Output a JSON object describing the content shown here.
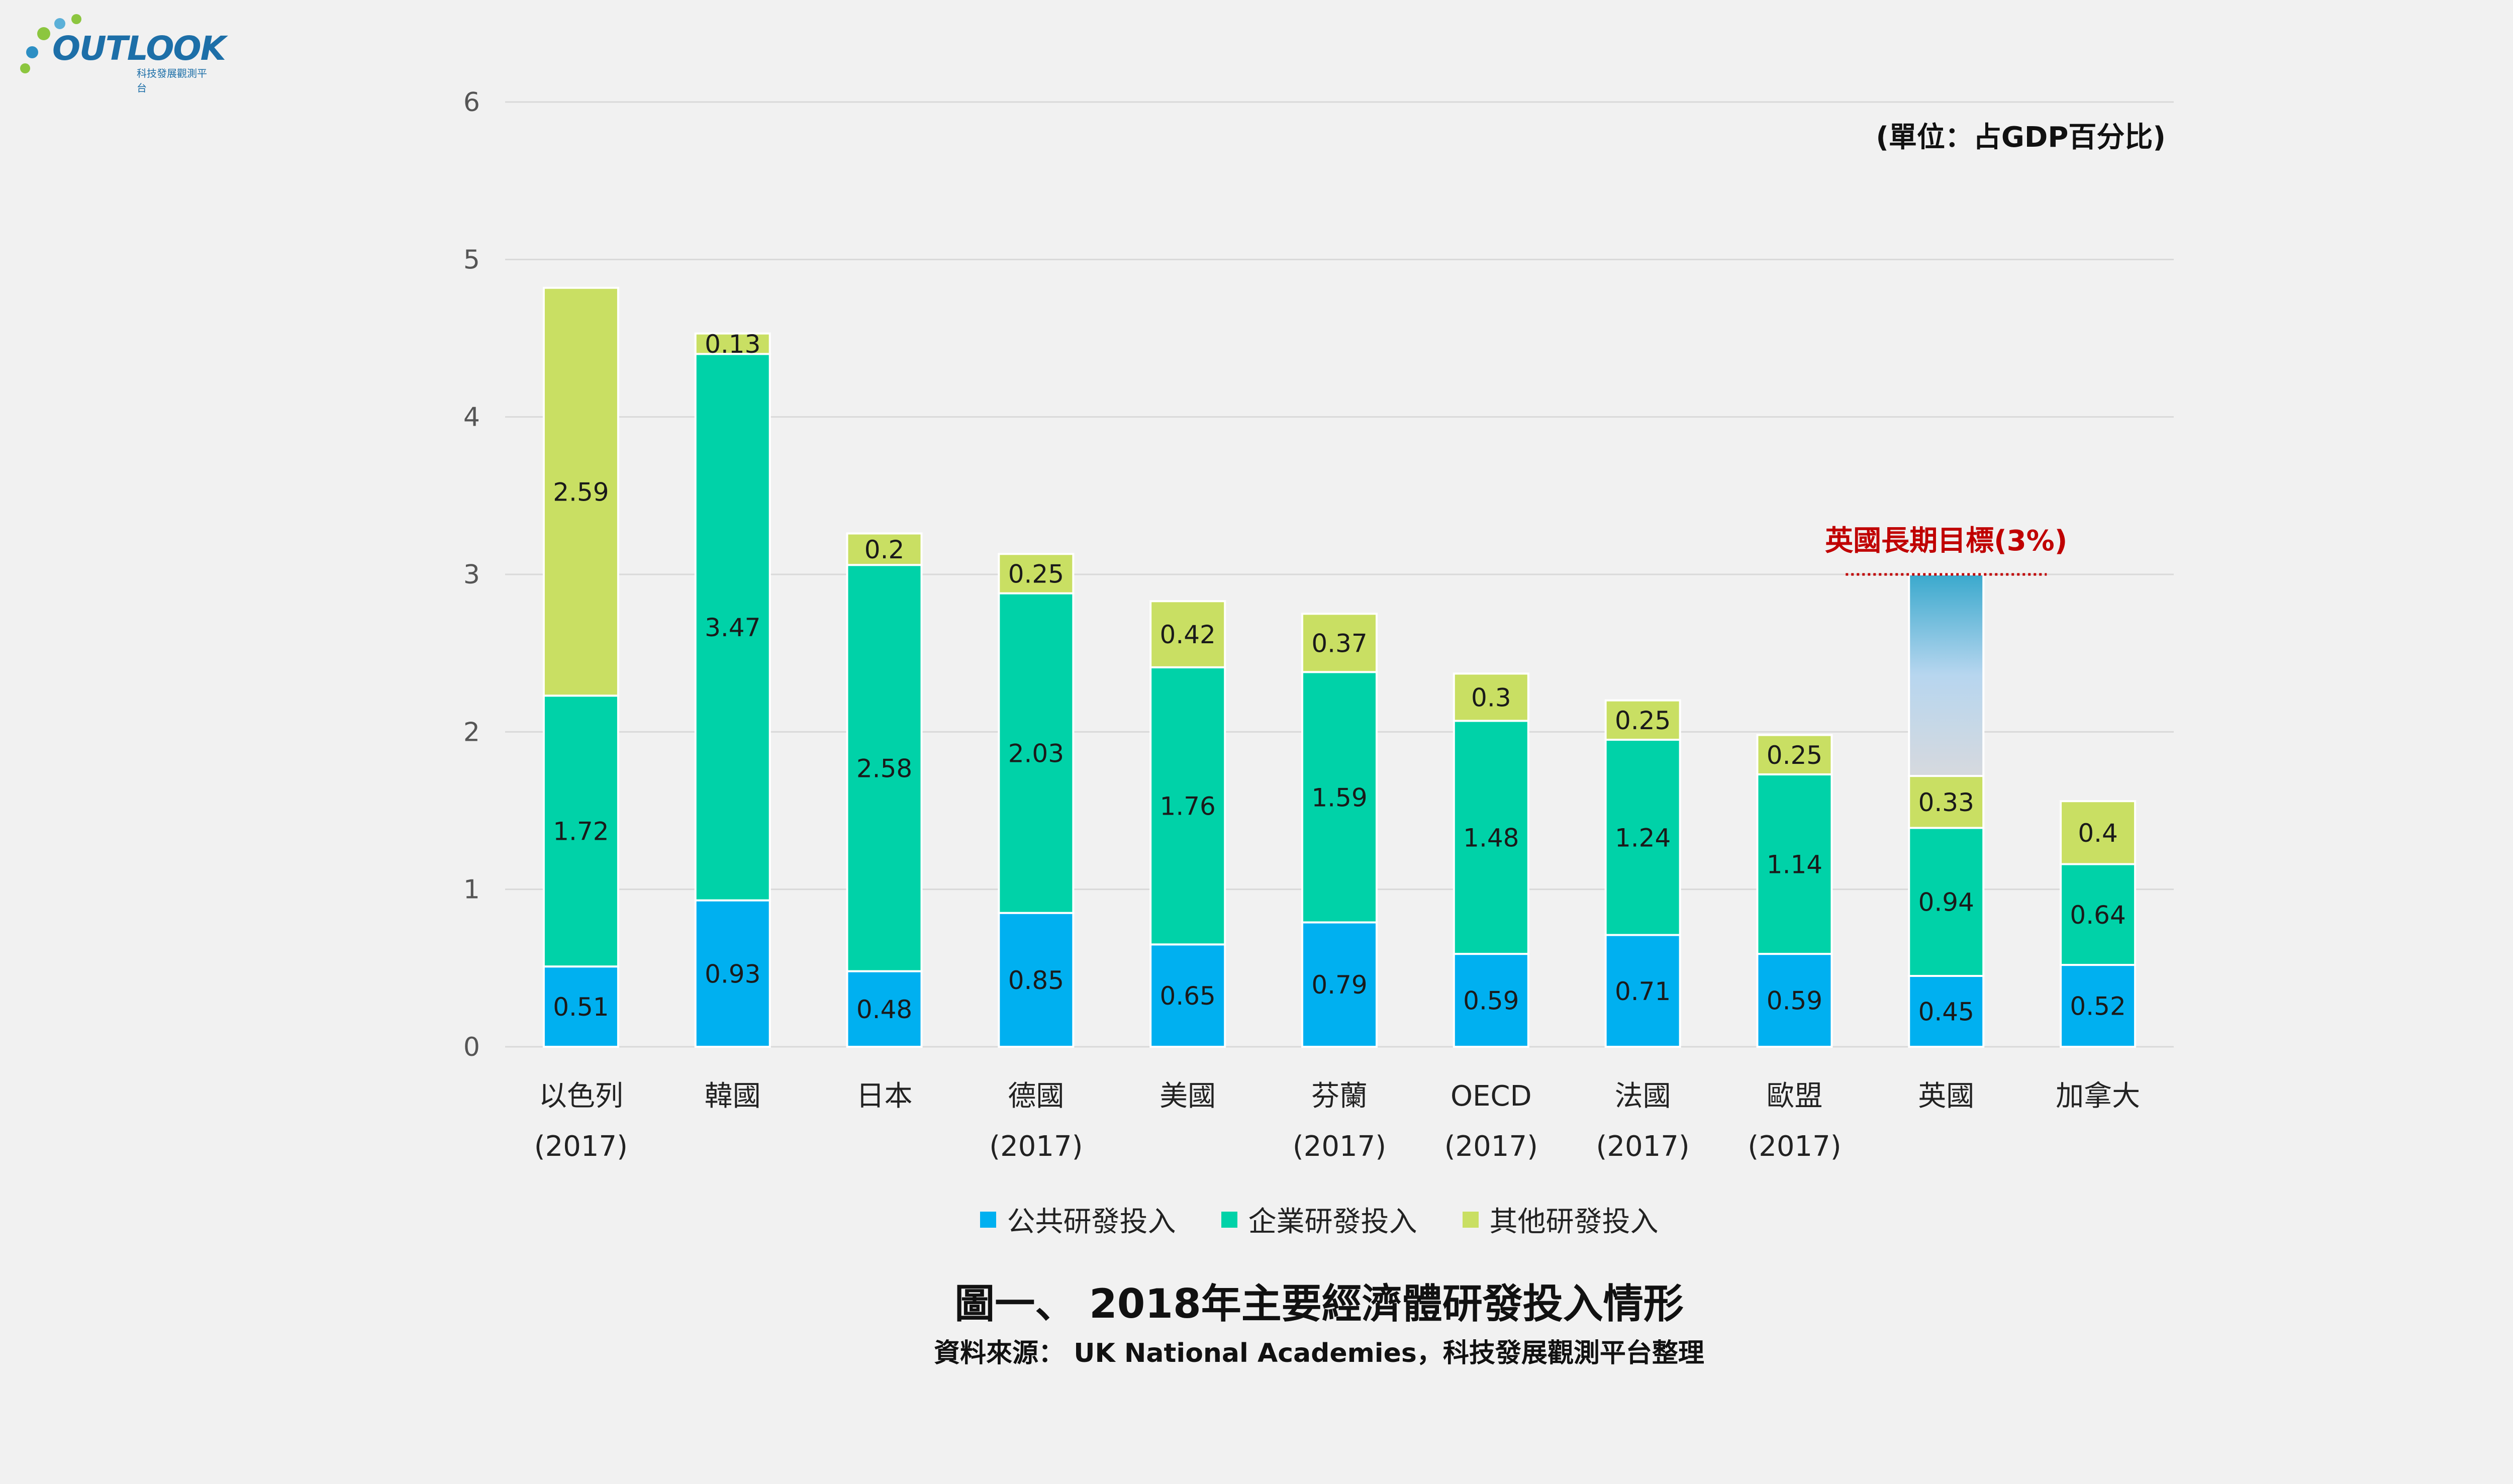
{
  "logo": {
    "text": "OUTLOOK",
    "subtext": "科技發展觀測平台"
  },
  "unit_label": "(單位：占GDP百分比)",
  "caption": {
    "title": "圖一、 2018年主要經濟體研發投入情形",
    "source": "資料來源： UK National Academies，科技發展觀測平台整理"
  },
  "colors": {
    "public": "#00b0f0",
    "business": "#00d2a8",
    "other": "#c9df63",
    "target_label": "#c00000",
    "background": "#f1f1f1"
  },
  "legend": [
    {
      "label": "公共研發投入",
      "color": "#00b0f0"
    },
    {
      "label": "企業研發投入",
      "color": "#00d2a8"
    },
    {
      "label": "其他研發投入",
      "color": "#c9df63"
    }
  ],
  "chart_data": {
    "type": "bar",
    "stacked": true,
    "categories": [
      [
        "以色列",
        "(2017)"
      ],
      [
        "韓國"
      ],
      [
        "日本"
      ],
      [
        "德國",
        "(2017)"
      ],
      [
        "美國"
      ],
      [
        "芬蘭",
        "(2017)"
      ],
      [
        "OECD",
        "(2017)"
      ],
      [
        "法國",
        "(2017)"
      ],
      [
        "歐盟",
        "(2017)"
      ],
      [
        "英國"
      ],
      [
        "加拿大"
      ]
    ],
    "series": [
      {
        "name": "公共研發投入",
        "values": [
          0.51,
          0.93,
          0.48,
          0.85,
          0.65,
          0.79,
          0.59,
          0.71,
          0.59,
          0.45,
          0.52
        ]
      },
      {
        "name": "企業研發投入",
        "values": [
          1.72,
          3.47,
          2.58,
          2.03,
          1.76,
          1.59,
          1.48,
          1.24,
          1.14,
          0.94,
          0.64
        ]
      },
      {
        "name": "其他研發投入",
        "values": [
          2.59,
          0.13,
          0.2,
          0.25,
          0.42,
          0.37,
          0.3,
          0.25,
          0.25,
          0.33,
          0.4
        ]
      }
    ],
    "ylim": [
      0,
      6
    ],
    "yticks": [
      0,
      1,
      2,
      3,
      4,
      5,
      6
    ],
    "grid": true,
    "legend_position": "bottom",
    "target": {
      "category_index": 9,
      "value": 3,
      "label": "英國長期目標(3%)"
    }
  }
}
